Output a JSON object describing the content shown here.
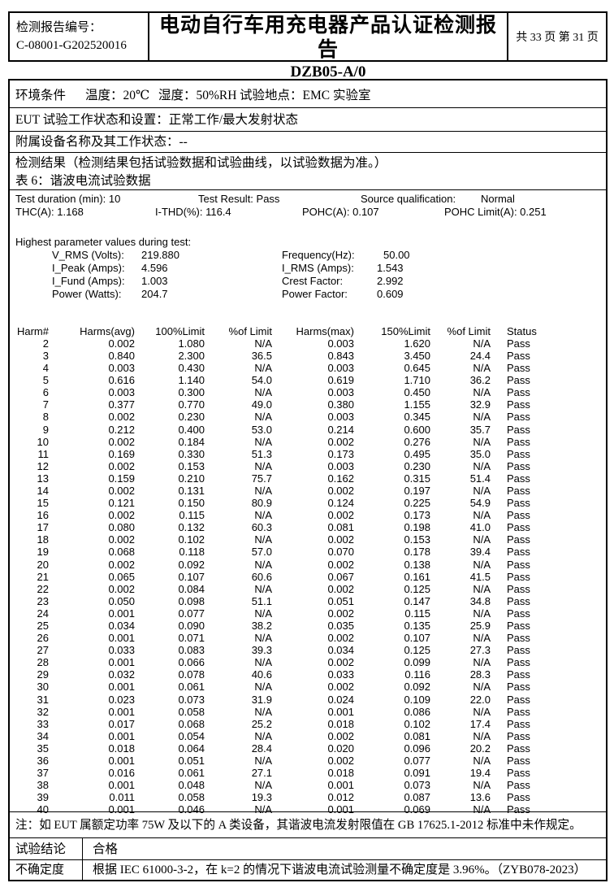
{
  "header": {
    "report_no_label": "检测报告编号：",
    "report_no": "C-08001-G202520016",
    "title": "电动自行车用充电器产品认证检测报告",
    "subtitle": "DZB05-A/0",
    "page_info": "共 33 页 第 31 页"
  },
  "env": {
    "label": "环境条件",
    "temperature": "温度：20℃",
    "humidity": "湿度：50%RH",
    "location": "试验地点：EMC 实验室"
  },
  "rows": {
    "eut": "EUT 试验工作状态和设置：正常工作/最大发射状态",
    "aux": "附属设备名称及其工作状态：--",
    "result_note": "检测结果（检测结果包括试验数据和试验曲线，以试验数据为准。）",
    "table_caption": "表 6：谐波电流试验数据"
  },
  "summary": {
    "line1": {
      "c1": "Test duration (min): 10",
      "c2": "Test Result: Pass",
      "c3": "Source qualification:",
      "c4": "Normal"
    },
    "line2": {
      "c1": "THC(A): 1.168",
      "c2": "I-THD(%): 116.4",
      "c3": "POHC(A): 0.107",
      "c4": "POHC Limit(A): 0.251"
    },
    "highest_header": "Highest parameter values during test:",
    "params": [
      {
        "l_label": "V_RMS (Volts):",
        "l_value": "219.880",
        "r_label": "Frequency(Hz):",
        "r_value": "50.00"
      },
      {
        "l_label": "I_Peak (Amps):",
        "l_value": "4.596",
        "r_label": "I_RMS (Amps):",
        "r_value": "1.543"
      },
      {
        "l_label": "I_Fund (Amps):",
        "l_value": "1.003",
        "r_label": "Crest Factor:",
        "r_value": "2.992"
      },
      {
        "l_label": "Power (Watts):",
        "l_value": "204.7",
        "r_label": "Power Factor:",
        "r_value": "0.609"
      }
    ]
  },
  "harmonics": {
    "columns": [
      "Harm#",
      "Harms(avg)",
      "100%Limit",
      "%of Limit",
      "Harms(max)",
      "150%Limit",
      "%of Limit",
      "Status"
    ],
    "rows": [
      [
        "2",
        "0.002",
        "1.080",
        "N/A",
        "0.003",
        "1.620",
        "N/A",
        "Pass"
      ],
      [
        "3",
        "0.840",
        "2.300",
        "36.5",
        "0.843",
        "3.450",
        "24.4",
        "Pass"
      ],
      [
        "4",
        "0.003",
        "0.430",
        "N/A",
        "0.003",
        "0.645",
        "N/A",
        "Pass"
      ],
      [
        "5",
        "0.616",
        "1.140",
        "54.0",
        "0.619",
        "1.710",
        "36.2",
        "Pass"
      ],
      [
        "6",
        "0.003",
        "0.300",
        "N/A",
        "0.003",
        "0.450",
        "N/A",
        "Pass"
      ],
      [
        "7",
        "0.377",
        "0.770",
        "49.0",
        "0.380",
        "1.155",
        "32.9",
        "Pass"
      ],
      [
        "8",
        "0.002",
        "0.230",
        "N/A",
        "0.003",
        "0.345",
        "N/A",
        "Pass"
      ],
      [
        "9",
        "0.212",
        "0.400",
        "53.0",
        "0.214",
        "0.600",
        "35.7",
        "Pass"
      ],
      [
        "10",
        "0.002",
        "0.184",
        "N/A",
        "0.002",
        "0.276",
        "N/A",
        "Pass"
      ],
      [
        "11",
        "0.169",
        "0.330",
        "51.3",
        "0.173",
        "0.495",
        "35.0",
        "Pass"
      ],
      [
        "12",
        "0.002",
        "0.153",
        "N/A",
        "0.003",
        "0.230",
        "N/A",
        "Pass"
      ],
      [
        "13",
        "0.159",
        "0.210",
        "75.7",
        "0.162",
        "0.315",
        "51.4",
        "Pass"
      ],
      [
        "14",
        "0.002",
        "0.131",
        "N/A",
        "0.002",
        "0.197",
        "N/A",
        "Pass"
      ],
      [
        "15",
        "0.121",
        "0.150",
        "80.9",
        "0.124",
        "0.225",
        "54.9",
        "Pass"
      ],
      [
        "16",
        "0.002",
        "0.115",
        "N/A",
        "0.002",
        "0.173",
        "N/A",
        "Pass"
      ],
      [
        "17",
        "0.080",
        "0.132",
        "60.3",
        "0.081",
        "0.198",
        "41.0",
        "Pass"
      ],
      [
        "18",
        "0.002",
        "0.102",
        "N/A",
        "0.002",
        "0.153",
        "N/A",
        "Pass"
      ],
      [
        "19",
        "0.068",
        "0.118",
        "57.0",
        "0.070",
        "0.178",
        "39.4",
        "Pass"
      ],
      [
        "20",
        "0.002",
        "0.092",
        "N/A",
        "0.002",
        "0.138",
        "N/A",
        "Pass"
      ],
      [
        "21",
        "0.065",
        "0.107",
        "60.6",
        "0.067",
        "0.161",
        "41.5",
        "Pass"
      ],
      [
        "22",
        "0.002",
        "0.084",
        "N/A",
        "0.002",
        "0.125",
        "N/A",
        "Pass"
      ],
      [
        "23",
        "0.050",
        "0.098",
        "51.1",
        "0.051",
        "0.147",
        "34.8",
        "Pass"
      ],
      [
        "24",
        "0.001",
        "0.077",
        "N/A",
        "0.002",
        "0.115",
        "N/A",
        "Pass"
      ],
      [
        "25",
        "0.034",
        "0.090",
        "38.2",
        "0.035",
        "0.135",
        "25.9",
        "Pass"
      ],
      [
        "26",
        "0.001",
        "0.071",
        "N/A",
        "0.002",
        "0.107",
        "N/A",
        "Pass"
      ],
      [
        "27",
        "0.033",
        "0.083",
        "39.3",
        "0.034",
        "0.125",
        "27.3",
        "Pass"
      ],
      [
        "28",
        "0.001",
        "0.066",
        "N/A",
        "0.002",
        "0.099",
        "N/A",
        "Pass"
      ],
      [
        "29",
        "0.032",
        "0.078",
        "40.6",
        "0.033",
        "0.116",
        "28.3",
        "Pass"
      ],
      [
        "30",
        "0.001",
        "0.061",
        "N/A",
        "0.002",
        "0.092",
        "N/A",
        "Pass"
      ],
      [
        "31",
        "0.023",
        "0.073",
        "31.9",
        "0.024",
        "0.109",
        "22.0",
        "Pass"
      ],
      [
        "32",
        "0.001",
        "0.058",
        "N/A",
        "0.001",
        "0.086",
        "N/A",
        "Pass"
      ],
      [
        "33",
        "0.017",
        "0.068",
        "25.2",
        "0.018",
        "0.102",
        "17.4",
        "Pass"
      ],
      [
        "34",
        "0.001",
        "0.054",
        "N/A",
        "0.002",
        "0.081",
        "N/A",
        "Pass"
      ],
      [
        "35",
        "0.018",
        "0.064",
        "28.4",
        "0.020",
        "0.096",
        "20.2",
        "Pass"
      ],
      [
        "36",
        "0.001",
        "0.051",
        "N/A",
        "0.002",
        "0.077",
        "N/A",
        "Pass"
      ],
      [
        "37",
        "0.016",
        "0.061",
        "27.1",
        "0.018",
        "0.091",
        "19.4",
        "Pass"
      ],
      [
        "38",
        "0.001",
        "0.048",
        "N/A",
        "0.001",
        "0.073",
        "N/A",
        "Pass"
      ],
      [
        "39",
        "0.011",
        "0.058",
        "19.3",
        "0.012",
        "0.087",
        "13.6",
        "Pass"
      ],
      [
        "40",
        "0.001",
        "0.046",
        "N/A",
        "0.001",
        "0.069",
        "N/A",
        "Pass"
      ]
    ]
  },
  "footer": {
    "note": "注：如 EUT 属额定功率 75W 及以下的 A 类设备，其谐波电流发射限值在 GB 17625.1-2012 标准中未作规定。",
    "conclusion_label": "试验结论",
    "conclusion": "合格",
    "uncertainty_label": "不确定度",
    "uncertainty": "根据 IEC 61000-3-2，在 k=2 的情况下谐波电流试验测量不确定度是 3.96%。（ZYB078-2023）"
  }
}
